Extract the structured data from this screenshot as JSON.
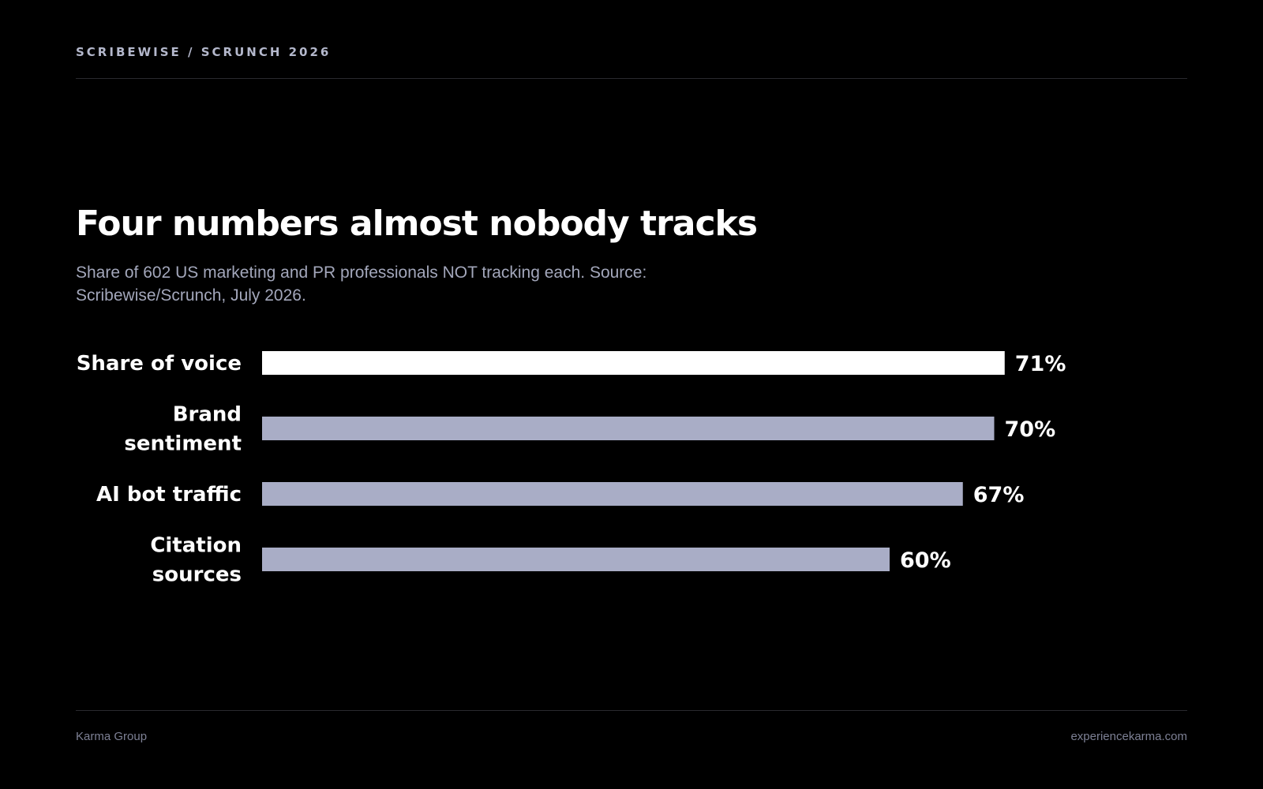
{
  "header": {
    "eyebrow": "SCRIBEWISE / SCRUNCH 2026"
  },
  "colors": {
    "background": "#000000",
    "highlight_bar": "#ffffff",
    "default_bar": "#a9adc6",
    "text": "#ffffff",
    "muted_text": "#a3a7bb"
  },
  "chart_data": {
    "type": "bar",
    "orientation": "horizontal",
    "title": "Four numbers almost nobody tracks",
    "subtitle": "Share of 602 US marketing and PR professionals NOT tracking each. Source: Scribewise/Scrunch, July 2026.",
    "categories": [
      "Share of voice",
      "Brand sentiment",
      "AI bot traffic",
      "Citation sources"
    ],
    "label_lines": [
      [
        "Share of voice"
      ],
      [
        "Brand",
        "sentiment"
      ],
      [
        "AI bot traffic"
      ],
      [
        "Citation",
        "sources"
      ]
    ],
    "values": [
      71,
      70,
      67,
      60
    ],
    "value_labels": [
      "71%",
      "70%",
      "67%",
      "60%"
    ],
    "highlight_index": 0,
    "xlim": [
      0,
      100
    ],
    "grid": false,
    "legend": "none"
  },
  "footer": {
    "left": "Karma Group",
    "right": "experiencekarma.com"
  }
}
